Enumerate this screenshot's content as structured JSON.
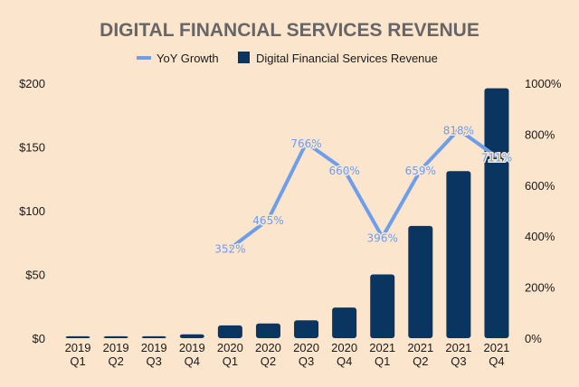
{
  "chart_data": {
    "type": "bar",
    "title": "DIGITAL FINANCIAL SERVICES REVENUE",
    "categories": [
      [
        "2019",
        "Q1"
      ],
      [
        "2019",
        "Q2"
      ],
      [
        "2019",
        "Q3"
      ],
      [
        "2019",
        "Q4"
      ],
      [
        "2020",
        "Q1"
      ],
      [
        "2020",
        "Q2"
      ],
      [
        "2020",
        "Q3"
      ],
      [
        "2020",
        "Q4"
      ],
      [
        "2021",
        "Q1"
      ],
      [
        "2021",
        "Q2"
      ],
      [
        "2021",
        "Q3"
      ],
      [
        "2021",
        "Q4"
      ]
    ],
    "series": [
      {
        "name": "Digital Financial Services Revenue",
        "type": "bar",
        "axis": "left",
        "color": "#0b3561",
        "values": [
          1.5,
          1.5,
          1.5,
          3,
          10,
          11.5,
          14,
          24,
          50,
          88,
          131,
          196
        ]
      },
      {
        "name": "YoY Growth",
        "type": "line",
        "axis": "right",
        "color": "#6d9eeb",
        "values": [
          null,
          null,
          null,
          null,
          352,
          465,
          766,
          660,
          396,
          659,
          818,
          711
        ],
        "labels": [
          null,
          null,
          null,
          null,
          "352%",
          "465%",
          "766%",
          "660%",
          "396%",
          "659%",
          "818%",
          "711%"
        ]
      }
    ],
    "left_axis": {
      "min": 0,
      "max": 200,
      "ticks": [
        0,
        50,
        100,
        150,
        200
      ],
      "tick_labels": [
        "$0",
        "$50",
        "$100",
        "$150",
        "$200"
      ]
    },
    "right_axis": {
      "min": 0,
      "max": 1000,
      "ticks": [
        0,
        200,
        400,
        600,
        800,
        1000
      ],
      "tick_labels": [
        "0%",
        "200%",
        "400%",
        "600%",
        "800%",
        "1000%"
      ]
    },
    "legend": {
      "position": "top",
      "entries": [
        "YoY Growth",
        "Digital Financial Services Revenue"
      ]
    },
    "grid": false
  }
}
